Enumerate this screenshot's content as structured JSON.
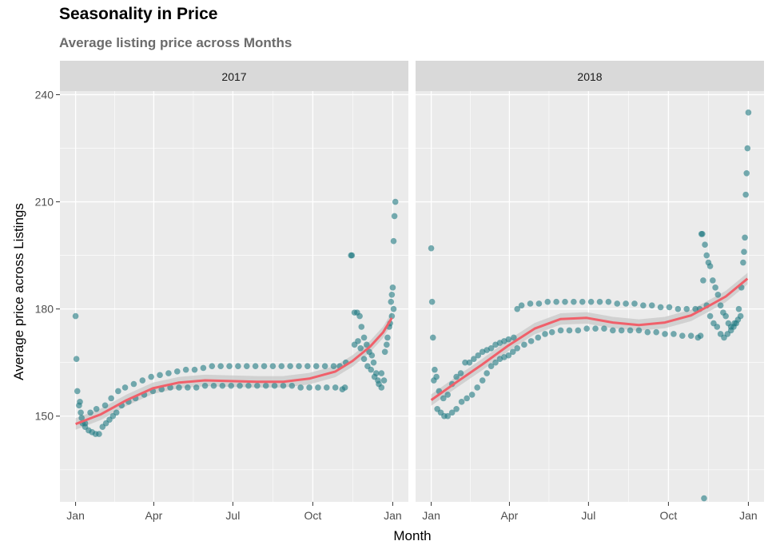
{
  "chart_data": {
    "type": "scatter",
    "title": "Seasonality in Price",
    "subtitle": "Average listing price across Months",
    "xlabel": "Month",
    "ylabel": "Average price across Listings",
    "ylim": [
      126,
      241
    ],
    "yticks": [
      150,
      180,
      210,
      240
    ],
    "xtick_labels": [
      "Jan",
      "Apr",
      "Jul",
      "Oct",
      "Jan"
    ],
    "grid": true,
    "colors": {
      "points": "#1f7a82",
      "trend": "#f0606a",
      "band": "#c8c8c8",
      "panel_bg": "#ebebeb",
      "strip_bg": "#d9d9d9",
      "grid": "#ffffff"
    },
    "panels": [
      {
        "label": "2017",
        "points_upper": [
          [
            1,
            178
          ],
          [
            2,
            166
          ],
          [
            3,
            157
          ],
          [
            5,
            153
          ],
          [
            7,
            151
          ],
          [
            8,
            149.5
          ],
          [
            12,
            148
          ],
          [
            18,
            151
          ],
          [
            25,
            152
          ],
          [
            35,
            153
          ],
          [
            42,
            155
          ],
          [
            50,
            157
          ],
          [
            58,
            158
          ],
          [
            68,
            159
          ],
          [
            78,
            160
          ],
          [
            88,
            161
          ],
          [
            98,
            161.5
          ],
          [
            108,
            162
          ],
          [
            118,
            162.5
          ],
          [
            128,
            163
          ],
          [
            138,
            163
          ],
          [
            148,
            163.5
          ],
          [
            158,
            164
          ],
          [
            168,
            164
          ],
          [
            178,
            164
          ],
          [
            188,
            164
          ],
          [
            198,
            164
          ],
          [
            208,
            164
          ],
          [
            218,
            164
          ],
          [
            228,
            164
          ],
          [
            238,
            164
          ],
          [
            248,
            164
          ],
          [
            258,
            164
          ],
          [
            268,
            164
          ],
          [
            278,
            164
          ],
          [
            288,
            164
          ],
          [
            298,
            164
          ],
          [
            305,
            164
          ],
          [
            312,
            165
          ],
          [
            318,
            195
          ],
          [
            319,
            195
          ],
          [
            322,
            179
          ],
          [
            325,
            179
          ],
          [
            328,
            178
          ],
          [
            330,
            175
          ],
          [
            333,
            172
          ],
          [
            336,
            170
          ],
          [
            339,
            168
          ],
          [
            342,
            167
          ],
          [
            344,
            165
          ],
          [
            347,
            162
          ],
          [
            350,
            159
          ],
          [
            353,
            158
          ],
          [
            356,
            160
          ],
          [
            359,
            170
          ],
          [
            362,
            175
          ],
          [
            364,
            182
          ],
          [
            365,
            184
          ],
          [
            366,
            186
          ],
          [
            367,
            199
          ],
          [
            368,
            206
          ],
          [
            369,
            210
          ]
        ],
        "points_lower": [
          [
            6,
            154
          ],
          [
            9,
            148
          ],
          [
            12,
            147
          ],
          [
            16,
            146
          ],
          [
            20,
            145.5
          ],
          [
            24,
            145
          ],
          [
            28,
            145
          ],
          [
            32,
            147
          ],
          [
            36,
            148
          ],
          [
            40,
            149
          ],
          [
            44,
            150
          ],
          [
            48,
            151
          ],
          [
            54,
            153
          ],
          [
            62,
            154
          ],
          [
            70,
            155
          ],
          [
            80,
            156
          ],
          [
            90,
            157
          ],
          [
            100,
            157.5
          ],
          [
            110,
            158
          ],
          [
            120,
            158
          ],
          [
            130,
            158
          ],
          [
            140,
            158
          ],
          [
            150,
            158.5
          ],
          [
            160,
            158.5
          ],
          [
            170,
            158.5
          ],
          [
            180,
            158.5
          ],
          [
            190,
            158.5
          ],
          [
            200,
            158.5
          ],
          [
            210,
            158.5
          ],
          [
            220,
            158.5
          ],
          [
            230,
            158.5
          ],
          [
            240,
            158.5
          ],
          [
            250,
            158.5
          ],
          [
            260,
            158
          ],
          [
            270,
            158
          ],
          [
            280,
            158
          ],
          [
            290,
            158
          ],
          [
            300,
            158
          ],
          [
            308,
            157.5
          ],
          [
            311,
            158
          ],
          [
            322,
            170
          ],
          [
            326,
            171
          ],
          [
            329,
            169
          ],
          [
            333,
            166
          ],
          [
            337,
            164
          ],
          [
            341,
            163
          ],
          [
            345,
            161
          ],
          [
            349,
            160
          ],
          [
            353,
            162
          ],
          [
            357,
            168
          ],
          [
            360,
            172
          ],
          [
            363,
            176
          ],
          [
            365,
            178
          ],
          [
            367,
            180
          ]
        ],
        "trend": [
          [
            1,
            147.8
          ],
          [
            30,
            150.5
          ],
          [
            60,
            154.5
          ],
          [
            90,
            157.8
          ],
          [
            120,
            159.4
          ],
          [
            150,
            160
          ],
          [
            180,
            159.8
          ],
          [
            210,
            159.6
          ],
          [
            240,
            159.6
          ],
          [
            270,
            160.5
          ],
          [
            300,
            162.5
          ],
          [
            320,
            165.5
          ],
          [
            340,
            169.5
          ],
          [
            355,
            173.5
          ],
          [
            365,
            177.5
          ]
        ]
      },
      {
        "label": "2018",
        "points_upper": [
          [
            1,
            197
          ],
          [
            2,
            182
          ],
          [
            3,
            172
          ],
          [
            5,
            163
          ],
          [
            7,
            161
          ],
          [
            10,
            157
          ],
          [
            15,
            155
          ],
          [
            20,
            156
          ],
          [
            25,
            159
          ],
          [
            30,
            161
          ],
          [
            35,
            162
          ],
          [
            40,
            165
          ],
          [
            45,
            165
          ],
          [
            50,
            166
          ],
          [
            55,
            167
          ],
          [
            60,
            168
          ],
          [
            65,
            168.5
          ],
          [
            70,
            169
          ],
          [
            75,
            170
          ],
          [
            80,
            170.5
          ],
          [
            85,
            171
          ],
          [
            90,
            171.5
          ],
          [
            96,
            172
          ],
          [
            100,
            180
          ],
          [
            105,
            181
          ],
          [
            115,
            181.5
          ],
          [
            125,
            181.5
          ],
          [
            135,
            182
          ],
          [
            145,
            182
          ],
          [
            155,
            182
          ],
          [
            165,
            182
          ],
          [
            175,
            182
          ],
          [
            185,
            182
          ],
          [
            195,
            182
          ],
          [
            205,
            182
          ],
          [
            215,
            181.5
          ],
          [
            225,
            181.5
          ],
          [
            235,
            181.5
          ],
          [
            245,
            181
          ],
          [
            255,
            181
          ],
          [
            265,
            180.5
          ],
          [
            275,
            180.5
          ],
          [
            285,
            180
          ],
          [
            295,
            180
          ],
          [
            305,
            180
          ],
          [
            310,
            180
          ],
          [
            312,
            201
          ],
          [
            313,
            201
          ],
          [
            314,
            188
          ],
          [
            316,
            198
          ],
          [
            318,
            195
          ],
          [
            320,
            193
          ],
          [
            322,
            192
          ],
          [
            325,
            188
          ],
          [
            328,
            186
          ],
          [
            331,
            184
          ],
          [
            334,
            181
          ],
          [
            337,
            179
          ],
          [
            340,
            178
          ],
          [
            343,
            176
          ],
          [
            346,
            174
          ],
          [
            349,
            175
          ],
          [
            352,
            176
          ],
          [
            355,
            180
          ],
          [
            358,
            186
          ],
          [
            360,
            193
          ],
          [
            361,
            196
          ],
          [
            362,
            200
          ],
          [
            363,
            212
          ],
          [
            364,
            218
          ],
          [
            365,
            225
          ],
          [
            366,
            235
          ]
        ],
        "points_lower": [
          [
            4,
            160
          ],
          [
            8,
            152
          ],
          [
            12,
            151
          ],
          [
            16,
            150
          ],
          [
            20,
            150
          ],
          [
            25,
            151
          ],
          [
            30,
            152
          ],
          [
            36,
            154
          ],
          [
            42,
            155
          ],
          [
            48,
            156
          ],
          [
            54,
            158
          ],
          [
            60,
            160
          ],
          [
            65,
            162
          ],
          [
            70,
            164
          ],
          [
            75,
            165
          ],
          [
            80,
            166
          ],
          [
            85,
            166.5
          ],
          [
            90,
            167
          ],
          [
            95,
            168
          ],
          [
            100,
            169
          ],
          [
            108,
            170
          ],
          [
            116,
            171
          ],
          [
            124,
            172
          ],
          [
            132,
            173
          ],
          [
            140,
            173.5
          ],
          [
            150,
            174
          ],
          [
            160,
            174
          ],
          [
            170,
            174
          ],
          [
            180,
            174.5
          ],
          [
            190,
            174.5
          ],
          [
            200,
            174.5
          ],
          [
            210,
            174
          ],
          [
            220,
            174
          ],
          [
            230,
            174
          ],
          [
            240,
            174
          ],
          [
            250,
            173.5
          ],
          [
            260,
            173.5
          ],
          [
            270,
            173
          ],
          [
            280,
            173
          ],
          [
            290,
            172.5
          ],
          [
            300,
            172.5
          ],
          [
            308,
            172
          ],
          [
            311,
            172.5
          ],
          [
            315,
            127
          ],
          [
            318,
            181
          ],
          [
            322,
            178
          ],
          [
            326,
            176
          ],
          [
            330,
            175
          ],
          [
            334,
            173
          ],
          [
            338,
            172
          ],
          [
            342,
            173
          ],
          [
            346,
            175
          ],
          [
            350,
            176
          ],
          [
            354,
            177
          ],
          [
            357,
            178
          ]
        ],
        "trend": [
          [
            1,
            154.5
          ],
          [
            30,
            159.5
          ],
          [
            60,
            164.5
          ],
          [
            90,
            169.8
          ],
          [
            120,
            174.5
          ],
          [
            150,
            177.2
          ],
          [
            180,
            177.5
          ],
          [
            210,
            176.2
          ],
          [
            240,
            175.5
          ],
          [
            270,
            176.2
          ],
          [
            300,
            178.2
          ],
          [
            320,
            180.8
          ],
          [
            340,
            183.5
          ],
          [
            355,
            186.5
          ],
          [
            365,
            188.5
          ]
        ]
      }
    ]
  }
}
